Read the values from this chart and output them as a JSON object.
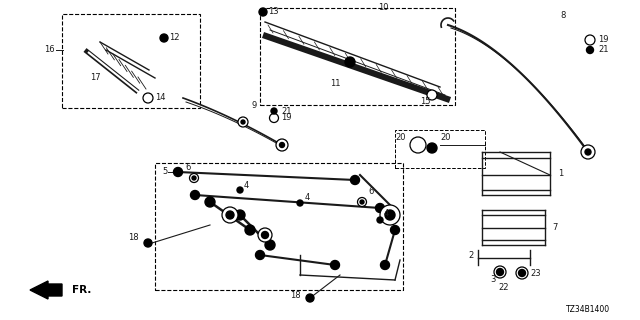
{
  "part_code": "TZ34B1400",
  "bg_color": "#ffffff",
  "line_color": "#1a1a1a",
  "figsize": [
    6.4,
    3.2
  ],
  "dpi": 100,
  "font_size": 6.0
}
